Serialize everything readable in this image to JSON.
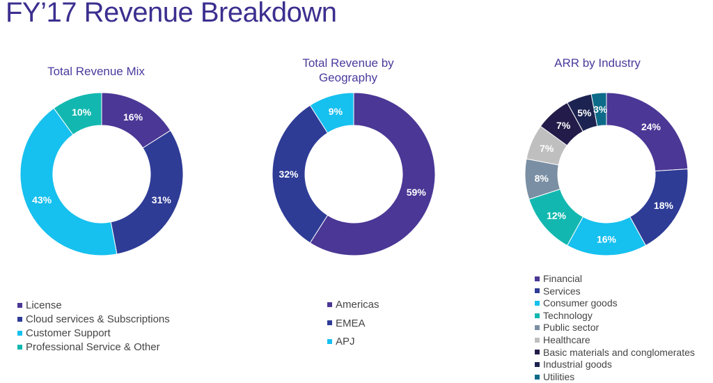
{
  "page": {
    "title": "FY’17 Revenue Breakdown"
  },
  "chart_data": [
    {
      "type": "pie",
      "subtype": "donut",
      "title": "Total Revenue Mix",
      "legend_placement": "bottom",
      "slices": [
        {
          "label": "License",
          "value": 16,
          "value_label": "16%",
          "color": "#4b3795"
        },
        {
          "label": "Cloud services & Subscriptions",
          "value": 31,
          "value_label": "31%",
          "color": "#2e3c96"
        },
        {
          "label": "Customer Support",
          "value": 43,
          "value_label": "43%",
          "color": "#16c0ef"
        },
        {
          "label": "Professional Service & Other",
          "value": 10,
          "value_label": "10%",
          "color": "#12b8b0"
        }
      ]
    },
    {
      "type": "pie",
      "subtype": "donut",
      "title": "Total Revenue by Geography",
      "legend_placement": "bottom",
      "slices": [
        {
          "label": "Americas",
          "value": 59,
          "value_label": "59%",
          "color": "#4b3795"
        },
        {
          "label": "EMEA",
          "value": 32,
          "value_label": "32%",
          "color": "#2e3c96"
        },
        {
          "label": "APJ",
          "value": 9,
          "value_label": "9%",
          "color": "#16c0ef"
        }
      ]
    },
    {
      "type": "pie",
      "subtype": "donut",
      "title": "ARR by Industry",
      "legend_placement": "bottom",
      "slices": [
        {
          "label": "Financial",
          "value": 24,
          "value_label": "24%",
          "color": "#4b3795"
        },
        {
          "label": "Services",
          "value": 18,
          "value_label": "18%",
          "color": "#2e3c96"
        },
        {
          "label": "Consumer goods",
          "value": 16,
          "value_label": "16%",
          "color": "#16c0ef"
        },
        {
          "label": "Technology",
          "value": 12,
          "value_label": "12%",
          "color": "#12b8b0"
        },
        {
          "label": "Public sector",
          "value": 8,
          "value_label": "8%",
          "color": "#7a8fa3"
        },
        {
          "label": "Healthcare",
          "value": 7,
          "value_label": "7%",
          "color": "#bfbfbf"
        },
        {
          "label": "Basic materials and conglomerates",
          "value": 7,
          "value_label": "7%",
          "color": "#231c4a"
        },
        {
          "label": "Industrial goods",
          "value": 5,
          "value_label": "5%",
          "color": "#1c2350"
        },
        {
          "label": "Utilities",
          "value": 3,
          "value_label": "3%",
          "color": "#0d6b89"
        }
      ]
    }
  ]
}
